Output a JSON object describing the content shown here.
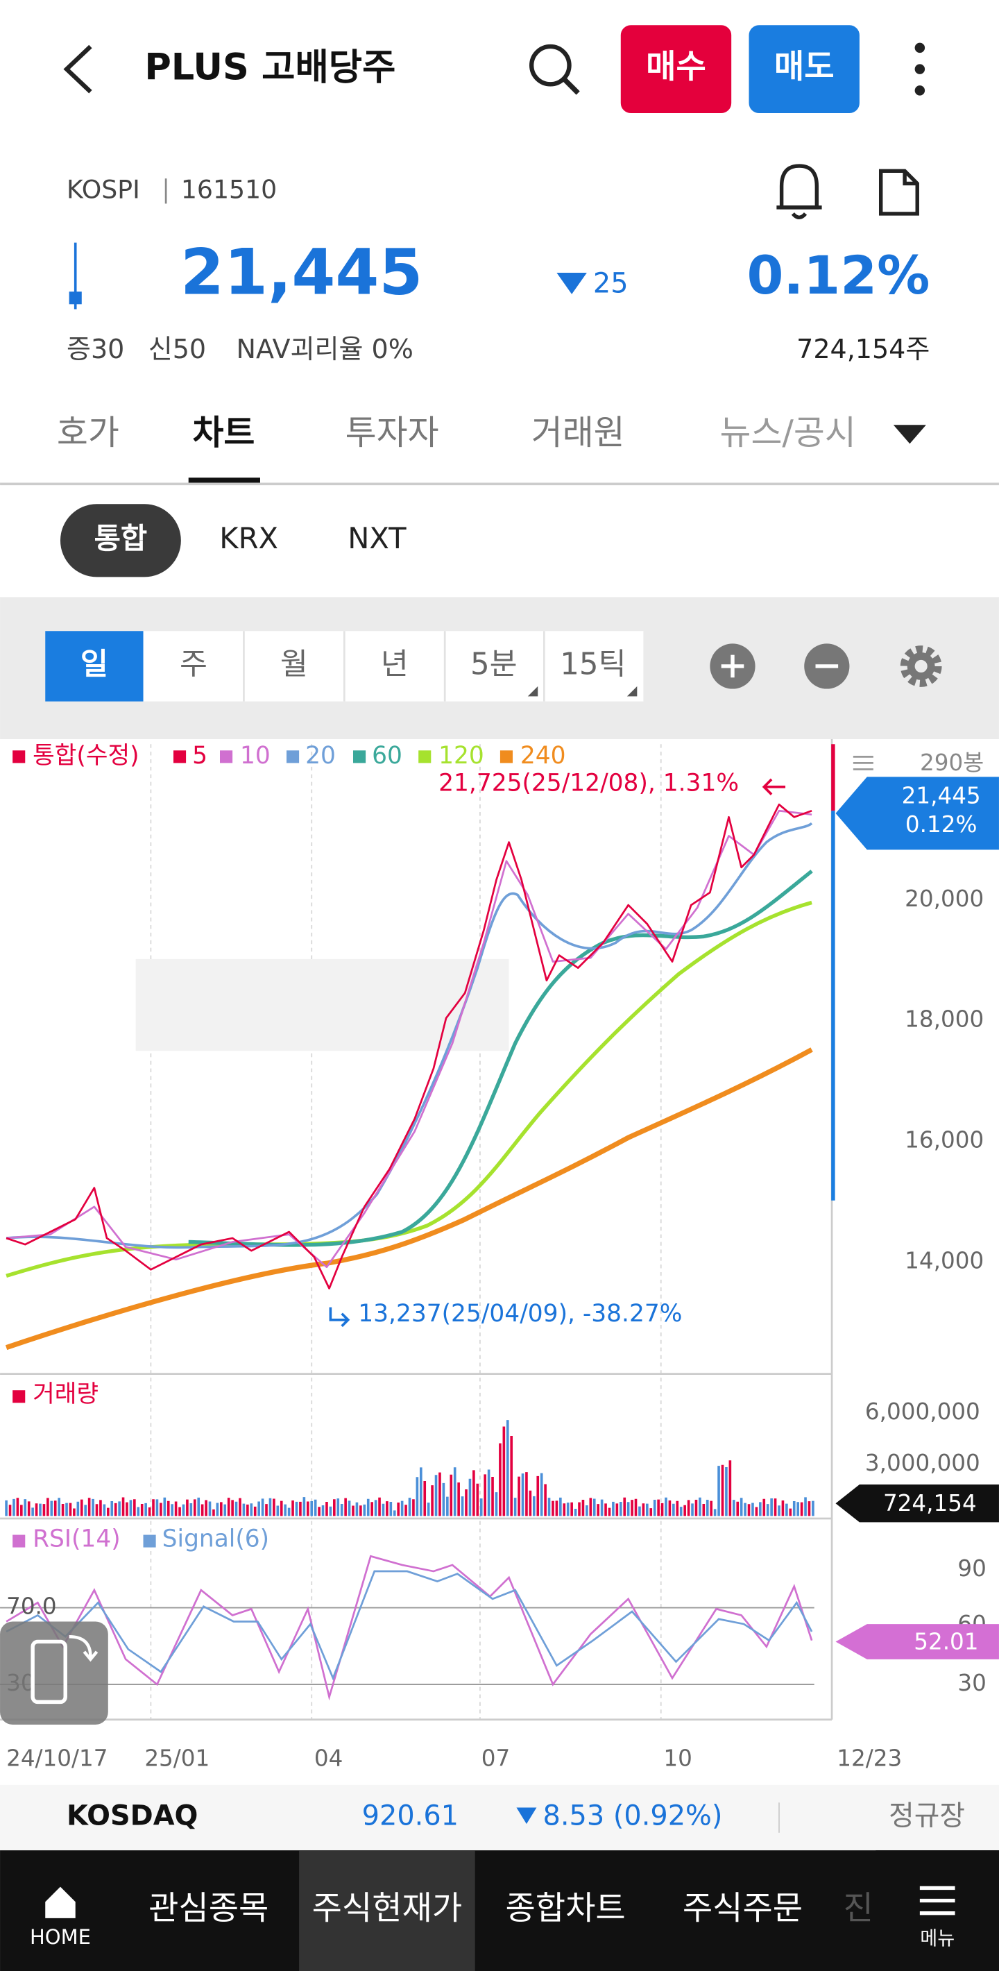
{
  "header": {
    "title": "PLUS 고배당주",
    "buy": "매수",
    "sell": "매도"
  },
  "quote": {
    "market": "KOSPI",
    "code": "161510",
    "price": "21,445",
    "change": "25",
    "change_pct": "0.12%",
    "margin": "증30",
    "credit": "신50",
    "nav": "NAV괴리율 0%",
    "volume": "724,154주"
  },
  "tabs": [
    "호가",
    "차트",
    "투자자",
    "거래원",
    "뉴스/공시"
  ],
  "markets": [
    "통합",
    "KRX",
    "NXT"
  ],
  "periods": [
    "일",
    "주",
    "월",
    "년",
    "5분",
    "15틱"
  ],
  "chart": {
    "legend": [
      "통합(수정)",
      "5",
      "10",
      "20",
      "60",
      "120",
      "240"
    ],
    "bars": "290봉",
    "price_ticks": [
      "20,000",
      "18,000",
      "16,000",
      "14,000"
    ],
    "high_note": "21,725(25/12/08), 1.31%",
    "low_note": "13,237(25/04/09), -38.27%",
    "current_price": "21,445",
    "current_pct": "0.12%",
    "volume_title": "거래량",
    "volume_ticks": [
      "6,000,000",
      "3,000,000"
    ],
    "volume_current": "724,154",
    "rsi_legend": [
      "RSI(14)",
      "Signal(6)"
    ],
    "rsi_ticks": [
      "90",
      "60",
      "30"
    ],
    "rsi_levels": [
      "70.0",
      "30"
    ],
    "rsi_current": "52.01",
    "dates": [
      "24/10/17",
      "25/01",
      "04",
      "07",
      "10",
      "12/23"
    ]
  },
  "index_bar": {
    "name": "KOSDAQ",
    "value": "920.61",
    "change": "8.53 (0.92%)",
    "session": "정규장"
  },
  "nav": [
    "HOME",
    "관심종목",
    "주식현재가",
    "종합차트",
    "주식주문",
    "진",
    "메뉴"
  ]
}
